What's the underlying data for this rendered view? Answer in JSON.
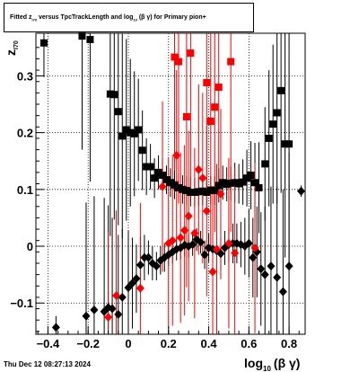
{
  "title": {
    "p1": "Fitted  z",
    "sub1": "I70",
    "p2": "  versus TpcTrackLength and log",
    "sub2": "10",
    "p3": " (β  γ) for Primary pion+"
  },
  "timestamp": "Thu Dec 12 08:27:13 2024",
  "chart_data": {
    "type": "scatter",
    "title": "Fitted z_I70 versus TpcTrackLength and log10(βγ) for Primary pion+",
    "xlabel_main": "log",
    "xlabel_sub": "10",
    "xlabel_tail": "(β γ)",
    "ylabel_main": "z",
    "ylabel_sub": "I70",
    "xlim": [
      -0.46,
      0.88
    ],
    "ylim": [
      -0.155,
      0.375
    ],
    "xticks": [
      -0.4,
      -0.2,
      0,
      0.2,
      0.4,
      0.6,
      0.8
    ],
    "xtick_labels": [
      "−0.4",
      "−0.2",
      "0",
      "0.2",
      "0.4",
      "0.6",
      "0.8"
    ],
    "yticks": [
      -0.1,
      0,
      0.1,
      0.2,
      0.3
    ],
    "ytick_labels": [
      "−0.1",
      "0",
      "0.1",
      "0.2",
      "0.3"
    ],
    "grid": true,
    "colors": {
      "black": "#000000",
      "red": "#ff0000"
    },
    "series": [
      {
        "marker": "square",
        "color": "#000000",
        "points": [
          {
            "x": -0.42,
            "y": 0.358,
            "err": 0.06
          },
          {
            "x": -0.23,
            "y": 0.37,
            "err": 0.2
          },
          {
            "x": -0.19,
            "y": 0.364,
            "err": 0.25
          },
          {
            "x": -0.09,
            "y": 0.268,
            "err": 0.25
          },
          {
            "x": -0.07,
            "y": 0.267,
            "err": 0.22
          },
          {
            "x": -0.05,
            "y": 0.237,
            "err": 0.2
          },
          {
            "x": -0.03,
            "y": 0.194,
            "err": 0.18
          },
          {
            "x": -0.01,
            "y": 0.205,
            "err": 0.16
          },
          {
            "x": 0.01,
            "y": 0.2,
            "err": 0.13
          },
          {
            "x": 0.03,
            "y": 0.198,
            "err": 0.11
          },
          {
            "x": 0.05,
            "y": 0.205,
            "err": 0.09
          },
          {
            "x": 0.07,
            "y": 0.169,
            "err": 0.07
          },
          {
            "x": 0.09,
            "y": 0.14,
            "err": 0.05
          },
          {
            "x": 0.11,
            "y": 0.14,
            "err": 0.04
          },
          {
            "x": 0.13,
            "y": 0.12,
            "err": 0.035
          },
          {
            "x": 0.15,
            "y": 0.13,
            "err": 0.03
          },
          {
            "x": 0.17,
            "y": 0.125,
            "err": 0.03
          },
          {
            "x": 0.19,
            "y": 0.117,
            "err": 0.025
          },
          {
            "x": 0.21,
            "y": 0.112,
            "err": 0.025
          },
          {
            "x": 0.23,
            "y": 0.108,
            "err": 0.025
          },
          {
            "x": 0.25,
            "y": 0.103,
            "err": 0.025
          },
          {
            "x": 0.27,
            "y": 0.1,
            "err": 0.025
          },
          {
            "x": 0.29,
            "y": 0.098,
            "err": 0.025
          },
          {
            "x": 0.31,
            "y": 0.095,
            "err": 0.025
          },
          {
            "x": 0.33,
            "y": 0.095,
            "err": 0.025
          },
          {
            "x": 0.35,
            "y": 0.096,
            "err": 0.025
          },
          {
            "x": 0.37,
            "y": 0.097,
            "err": 0.025
          },
          {
            "x": 0.39,
            "y": 0.095,
            "err": 0.025
          },
          {
            "x": 0.41,
            "y": 0.099,
            "err": 0.025
          },
          {
            "x": 0.43,
            "y": 0.098,
            "err": 0.025
          },
          {
            "x": 0.45,
            "y": 0.107,
            "err": 0.03
          },
          {
            "x": 0.47,
            "y": 0.112,
            "err": 0.03
          },
          {
            "x": 0.49,
            "y": 0.109,
            "err": 0.03
          },
          {
            "x": 0.51,
            "y": 0.111,
            "err": 0.03
          },
          {
            "x": 0.53,
            "y": 0.112,
            "err": 0.035
          },
          {
            "x": 0.55,
            "y": 0.11,
            "err": 0.035
          },
          {
            "x": 0.57,
            "y": 0.113,
            "err": 0.04
          },
          {
            "x": 0.59,
            "y": 0.12,
            "err": 0.05
          },
          {
            "x": 0.61,
            "y": 0.125,
            "err": 0.06
          },
          {
            "x": 0.63,
            "y": 0.112,
            "err": 0.07
          },
          {
            "x": 0.65,
            "y": 0.103,
            "err": 0.08
          },
          {
            "x": 0.68,
            "y": 0.145,
            "err": 0.1
          },
          {
            "x": 0.7,
            "y": 0.19,
            "err": 0.12
          },
          {
            "x": 0.72,
            "y": 0.215,
            "err": 0.14
          },
          {
            "x": 0.74,
            "y": 0.235,
            "err": 0.16
          },
          {
            "x": 0.76,
            "y": 0.274,
            "err": 0.18
          },
          {
            "x": 0.78,
            "y": 0.18,
            "err": 0.2
          },
          {
            "x": 0.8,
            "y": 0.18,
            "err": 0.22
          }
        ]
      },
      {
        "marker": "diamond",
        "color": "#000000",
        "points": [
          {
            "x": -0.36,
            "y": -0.143,
            "err": 0.02
          },
          {
            "x": -0.21,
            "y": -0.123,
            "err": 0.2
          },
          {
            "x": -0.17,
            "y": -0.112,
            "err": 0.2
          },
          {
            "x": -0.12,
            "y": -0.115,
            "err": 0.2
          },
          {
            "x": -0.1,
            "y": -0.108,
            "err": 0.18
          },
          {
            "x": -0.08,
            "y": -0.11,
            "err": 0.16
          },
          {
            "x": -0.05,
            "y": -0.12,
            "err": 0.14
          },
          {
            "x": -0.03,
            "y": -0.09,
            "err": 0.12
          },
          {
            "x": 0.0,
            "y": -0.073,
            "err": 0.1
          },
          {
            "x": 0.02,
            "y": -0.065,
            "err": 0.08
          },
          {
            "x": 0.04,
            "y": -0.057,
            "err": 0.06
          },
          {
            "x": 0.06,
            "y": -0.033,
            "err": 0.05
          },
          {
            "x": 0.08,
            "y": -0.02,
            "err": 0.04
          },
          {
            "x": 0.1,
            "y": -0.02,
            "err": 0.03
          },
          {
            "x": 0.12,
            "y": -0.03,
            "err": 0.03
          },
          {
            "x": 0.14,
            "y": -0.035,
            "err": 0.025
          },
          {
            "x": 0.16,
            "y": -0.025,
            "err": 0.025
          },
          {
            "x": 0.18,
            "y": -0.02,
            "err": 0.025
          },
          {
            "x": 0.2,
            "y": -0.015,
            "err": 0.02
          },
          {
            "x": 0.22,
            "y": -0.01,
            "err": 0.02
          },
          {
            "x": 0.24,
            "y": -0.005,
            "err": 0.02
          },
          {
            "x": 0.26,
            "y": -0.003,
            "err": 0.02
          },
          {
            "x": 0.28,
            "y": 0.002,
            "err": 0.02
          },
          {
            "x": 0.3,
            "y": 0.0,
            "err": 0.02
          },
          {
            "x": 0.32,
            "y": 0.003,
            "err": 0.02
          },
          {
            "x": 0.34,
            "y": 0.012,
            "err": 0.02
          },
          {
            "x": 0.36,
            "y": 0.007,
            "err": 0.02
          },
          {
            "x": 0.38,
            "y": -0.015,
            "err": 0.025
          },
          {
            "x": 0.4,
            "y": -0.003,
            "err": 0.025
          },
          {
            "x": 0.42,
            "y": -0.005,
            "err": 0.025
          },
          {
            "x": 0.44,
            "y": -0.008,
            "err": 0.025
          },
          {
            "x": 0.46,
            "y": -0.013,
            "err": 0.03
          },
          {
            "x": 0.48,
            "y": -0.003,
            "err": 0.03
          },
          {
            "x": 0.5,
            "y": 0.003,
            "err": 0.03
          },
          {
            "x": 0.52,
            "y": 0.005,
            "err": 0.035
          },
          {
            "x": 0.54,
            "y": 0.005,
            "err": 0.035
          },
          {
            "x": 0.56,
            "y": 0.003,
            "err": 0.04
          },
          {
            "x": 0.58,
            "y": 0.0,
            "err": 0.05
          },
          {
            "x": 0.6,
            "y": 0.005,
            "err": 0.06
          },
          {
            "x": 0.62,
            "y": -0.02,
            "err": 0.07
          },
          {
            "x": 0.64,
            "y": -0.01,
            "err": 0.08
          },
          {
            "x": 0.66,
            "y": -0.04,
            "err": 0.1
          },
          {
            "x": 0.68,
            "y": -0.05,
            "err": 0.12
          },
          {
            "x": 0.71,
            "y": -0.035,
            "err": 0.14
          },
          {
            "x": 0.74,
            "y": -0.055,
            "err": 0.16
          },
          {
            "x": 0.77,
            "y": -0.08,
            "err": 0.18
          },
          {
            "x": 0.8,
            "y": -0.035,
            "err": 0.2
          },
          {
            "x": 0.86,
            "y": 0.097,
            "err": 0.01
          }
        ]
      },
      {
        "marker": "square",
        "color": "#ff0000",
        "points": [
          {
            "x": 0.23,
            "y": 0.333,
            "err": 0.2
          },
          {
            "x": 0.25,
            "y": 0.325,
            "err": 0.25
          },
          {
            "x": 0.29,
            "y": 0.228,
            "err": 0.3
          },
          {
            "x": 0.31,
            "y": 0.34,
            "err": 0.25
          },
          {
            "x": 0.39,
            "y": 0.288,
            "err": 0.2
          },
          {
            "x": 0.41,
            "y": 0.22,
            "err": 0.22
          },
          {
            "x": 0.43,
            "y": 0.245,
            "err": 0.22
          },
          {
            "x": 0.45,
            "y": 0.28,
            "err": 0.2
          },
          {
            "x": 0.51,
            "y": 0.325,
            "err": 0.3
          }
        ]
      },
      {
        "marker": "diamond",
        "color": "#ff0000",
        "points": [
          {
            "x": -0.1,
            "y": -0.125,
            "err": 0.15
          },
          {
            "x": -0.06,
            "y": -0.087,
            "err": 0.15
          },
          {
            "x": 0.06,
            "y": -0.074,
            "err": 0.15
          },
          {
            "x": 0.17,
            "y": 0.105,
            "err": 0.15
          },
          {
            "x": 0.2,
            "y": 0.005,
            "err": 0.15
          },
          {
            "x": 0.22,
            "y": 0.01,
            "err": 0.15
          },
          {
            "x": 0.24,
            "y": 0.16,
            "err": 0.15
          },
          {
            "x": 0.26,
            "y": 0.015,
            "err": 0.15
          },
          {
            "x": 0.28,
            "y": 0.028,
            "err": 0.15
          },
          {
            "x": 0.3,
            "y": 0.053,
            "err": 0.15
          },
          {
            "x": 0.33,
            "y": 0.023,
            "err": 0.15
          },
          {
            "x": 0.35,
            "y": 0.135,
            "err": 0.15
          },
          {
            "x": 0.37,
            "y": 0.12,
            "err": 0.15
          },
          {
            "x": 0.39,
            "y": 0.062,
            "err": 0.15
          },
          {
            "x": 0.42,
            "y": -0.045,
            "err": 0.15
          },
          {
            "x": 0.44,
            "y": -0.005,
            "err": 0.15
          },
          {
            "x": 0.46,
            "y": 0.092,
            "err": 0.15
          },
          {
            "x": 0.5,
            "y": 0.005,
            "err": 0.15
          },
          {
            "x": 0.53,
            "y": -0.012,
            "err": 0.15
          },
          {
            "x": 0.63,
            "y": -0.003,
            "err": 0.15
          }
        ]
      }
    ]
  }
}
